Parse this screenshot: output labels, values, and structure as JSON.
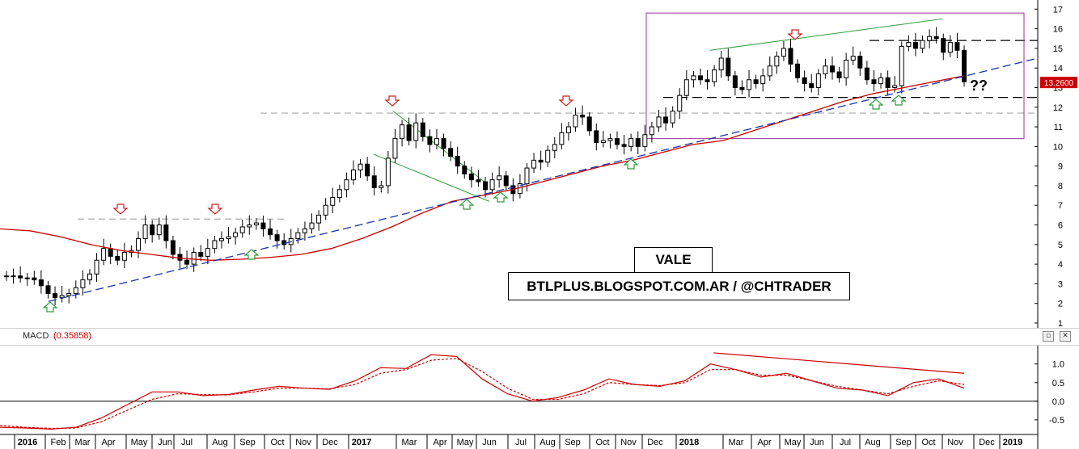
{
  "chart_title": "VALE",
  "source_label": "BTLPLUS.BLOGSPOT.COM.AR / @CHTRADER",
  "question_mark": "??",
  "price_tag": "13.2600",
  "macd_label": "MACD",
  "macd_value": "(0.35858)",
  "macd_buttons": {
    "restore": "▫",
    "close": "✕"
  },
  "colors": {
    "up_candle": "#ffffff",
    "down_candle": "#000000",
    "moving_average": "#cc0000",
    "trendline": "#1a33aa",
    "channel": "#2e9e3a",
    "resistance_gray": "#aaaaaa",
    "box": "#993399",
    "arrow_up": "#2e9e3a",
    "arrow_down": "#cc2222",
    "price_tag_bg": "#cc0000"
  },
  "chart_data": [
    {
      "type": "candlestick",
      "ticker": "VALE",
      "y_ticks": [
        "1",
        "2",
        "3",
        "4",
        "5",
        "6",
        "7",
        "8",
        "9",
        "10",
        "11",
        "12",
        "13",
        "14",
        "15",
        "16",
        "17"
      ],
      "ylim": [
        1,
        17.3
      ],
      "x_labels": [
        "2016",
        "Feb",
        "Mar",
        "Apr",
        "May",
        "Jun",
        "Jul",
        "Aug",
        "Sep",
        "Oct",
        "Nov",
        "Dec",
        "2017",
        "Mar",
        "Apr",
        "May",
        "Jun",
        "Jul",
        "Aug",
        "Sep",
        "Oct",
        "Nov",
        "Dec",
        "2018",
        "Mar",
        "Apr",
        "May",
        "Jun",
        "Jul",
        "Aug",
        "Sep",
        "Oct",
        "Nov",
        "Dec",
        "2019"
      ],
      "x_ticks_bold": [
        "2016",
        "2017",
        "2018",
        "2019"
      ],
      "last_price": 13.26,
      "weekly_close_approx": [
        3.4,
        3.4,
        3.3,
        3.3,
        3.2,
        2.9,
        2.5,
        2.3,
        2.4,
        2.5,
        2.8,
        3.2,
        3.5,
        4.2,
        4.8,
        4.4,
        4.2,
        4.6,
        4.7,
        5.3,
        6.0,
        5.5,
        6.0,
        5.2,
        4.5,
        4.2,
        4.0,
        4.6,
        4.4,
        4.8,
        5.2,
        5.3,
        5.4,
        5.6,
        5.9,
        6.0,
        6.1,
        5.8,
        5.5,
        5.2,
        5.0,
        5.3,
        5.6,
        5.8,
        6.1,
        6.5,
        7.0,
        7.4,
        7.8,
        8.3,
        8.8,
        9.1,
        8.5,
        7.9,
        8.0,
        9.4,
        10.4,
        11.1,
        10.3,
        11.2,
        10.5,
        10.1,
        10.4,
        9.9,
        9.5,
        9.0,
        8.6,
        8.3,
        8.2,
        7.8,
        8.3,
        8.5,
        8.0,
        7.6,
        8.1,
        8.9,
        9.3,
        9.2,
        9.8,
        10.1,
        10.7,
        11.0,
        11.6,
        11.5,
        10.8,
        10.2,
        10.3,
        10.4,
        10.1,
        10.0,
        10.4,
        10.0,
        10.6,
        11.0,
        11.5,
        11.2,
        11.8,
        12.6,
        13.4,
        13.6,
        13.4,
        13.3,
        13.9,
        14.5,
        13.6,
        13.0,
        12.9,
        13.4,
        13.2,
        13.6,
        14.1,
        14.6,
        15.0,
        14.2,
        13.5,
        13.2,
        13.0,
        13.7,
        14.1,
        13.8,
        13.5,
        14.4,
        14.6,
        14.0,
        13.4,
        13.2,
        13.5,
        13.0,
        13.1,
        15.1,
        15.3,
        15.0,
        15.4,
        15.6,
        15.5,
        14.8,
        15.3,
        14.9,
        13.3
      ],
      "ma_line_approx": [
        5.8,
        5.7,
        5.4,
        5.0,
        4.7,
        4.5,
        4.3,
        4.2,
        4.25,
        4.35,
        4.5,
        4.8,
        5.3,
        5.9,
        6.6,
        7.2,
        7.5,
        7.8,
        8.2,
        8.6,
        9.0,
        9.3,
        9.7,
        10.1,
        10.3,
        10.8,
        11.3,
        11.8,
        12.3,
        12.7,
        13.0,
        13.3,
        13.6
      ],
      "trendline": {
        "from": [
          "Feb 2016",
          2.1
        ],
        "to": [
          "Dec 2018",
          14.5
        ]
      },
      "resistance_levels": [
        6.3,
        11.7,
        12.5,
        15.4
      ],
      "annotations": {
        "box_range": {
          "from": "Dec 2017",
          "to": "Dec 2018",
          "low": 10.4,
          "high": 16.8
        },
        "green_upper_line": [
          [
            "Jan 2018",
            14.9
          ],
          [
            "Oct 2018",
            16.5
          ]
        ]
      }
    },
    {
      "type": "line",
      "title": "MACD",
      "value_label": "(0.35858)",
      "y_ticks": [
        "-0.5",
        "0.0",
        "0.5",
        "1.0"
      ],
      "ylim": [
        -0.85,
        1.45
      ],
      "series": [
        {
          "name": "MACD",
          "style": "solid",
          "values": [
            -0.7,
            -0.72,
            -0.75,
            -0.7,
            -0.45,
            -0.1,
            0.25,
            0.25,
            0.15,
            0.18,
            0.3,
            0.4,
            0.35,
            0.32,
            0.55,
            0.9,
            0.88,
            1.25,
            1.2,
            0.6,
            0.2,
            0.0,
            0.1,
            0.3,
            0.6,
            0.45,
            0.4,
            0.55,
            1.0,
            0.85,
            0.65,
            0.75,
            0.55,
            0.35,
            0.3,
            0.15,
            0.5,
            0.6,
            0.35
          ]
        },
        {
          "name": "Signal",
          "style": "dotted",
          "values": [
            -0.65,
            -0.7,
            -0.73,
            -0.72,
            -0.55,
            -0.25,
            0.05,
            0.2,
            0.18,
            0.17,
            0.25,
            0.35,
            0.35,
            0.33,
            0.45,
            0.75,
            0.85,
            1.1,
            1.15,
            0.8,
            0.35,
            0.05,
            0.05,
            0.2,
            0.5,
            0.45,
            0.42,
            0.5,
            0.85,
            0.85,
            0.7,
            0.7,
            0.55,
            0.4,
            0.3,
            0.2,
            0.4,
            0.55,
            0.45
          ]
        }
      ],
      "divergence_line": [
        [
          "Jan 2018",
          1.3
        ],
        [
          "Nov 2018",
          0.75
        ]
      ]
    }
  ]
}
